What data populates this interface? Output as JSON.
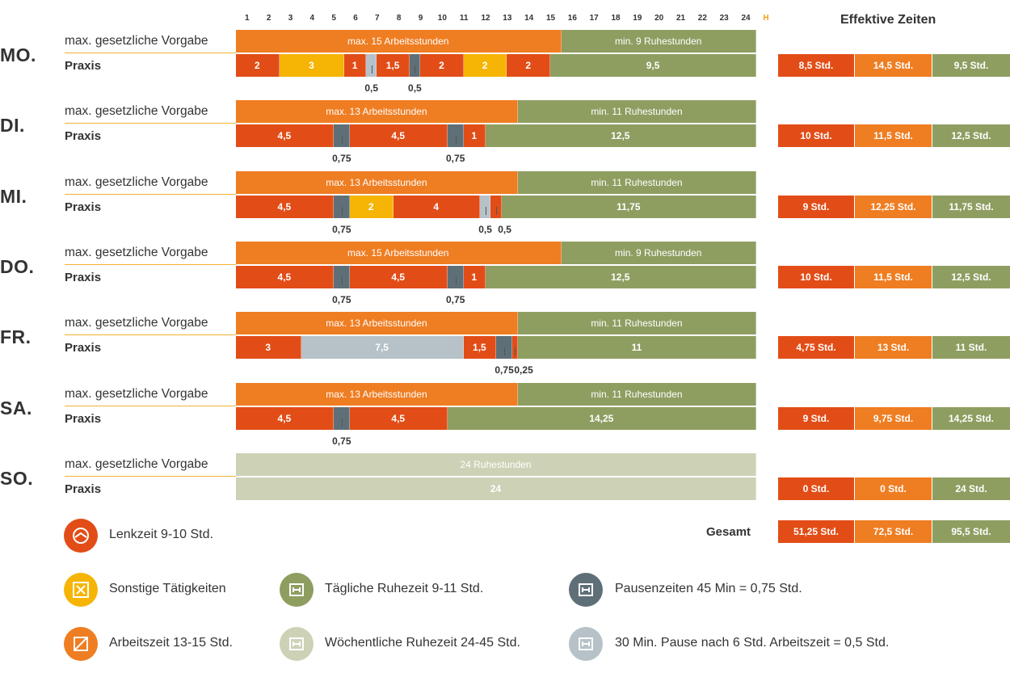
{
  "colors": {
    "lenkzeit": "#e24d17",
    "sonstige": "#f6b405",
    "arbeitszeit": "#ef7d22",
    "ruhezeit_taeglich": "#8e9e61",
    "ruhezeit_woechentlich": "#cdd2b6",
    "pause_075": "#5f6f78",
    "pause_05": "#b6c1c8"
  },
  "hours": [
    "1",
    "2",
    "3",
    "4",
    "5",
    "6",
    "7",
    "8",
    "9",
    "10",
    "11",
    "12",
    "13",
    "14",
    "15",
    "16",
    "17",
    "18",
    "19",
    "20",
    "21",
    "22",
    "23",
    "24"
  ],
  "hours_unit": "H",
  "effective_title": "Effektive Zeiten",
  "total_label": "Gesamt",
  "vorgabe_label": "max. gesetzliche Vorgabe",
  "praxis_label": "Praxis",
  "chart_data": {
    "type": "bar",
    "orientation": "horizontal-stacked",
    "xlim": [
      0,
      24
    ],
    "x_unit": "H",
    "days": [
      {
        "day": "MO.",
        "vorgabe": [
          {
            "label": "max. 15 Arbeitsstunden",
            "value": 15,
            "category": "arbeitszeit"
          },
          {
            "label": "min. 9 Ruhestunden",
            "value": 9,
            "category": "ruhezeit_taeglich"
          }
        ],
        "praxis": [
          {
            "label": "2",
            "value": 2,
            "category": "lenkzeit"
          },
          {
            "label": "3",
            "value": 3,
            "category": "sonstige"
          },
          {
            "label": "1",
            "value": 1,
            "category": "lenkzeit"
          },
          {
            "label": "",
            "value": 0.5,
            "category": "pause_05",
            "below": "0,5"
          },
          {
            "label": "1,5",
            "value": 1.5,
            "category": "lenkzeit"
          },
          {
            "label": "",
            "value": 0.5,
            "category": "pause_075",
            "below": "0,5"
          },
          {
            "label": "2",
            "value": 2,
            "category": "lenkzeit"
          },
          {
            "label": "2",
            "value": 2,
            "category": "sonstige"
          },
          {
            "label": "2",
            "value": 2,
            "category": "lenkzeit"
          },
          {
            "label": "9,5",
            "value": 9.5,
            "category": "ruhezeit_taeglich"
          }
        ],
        "effective": [
          "8,5 Std.",
          "14,5 Std.",
          "9,5 Std."
        ]
      },
      {
        "day": "DI.",
        "vorgabe": [
          {
            "label": "max. 13 Arbeitsstunden",
            "value": 13,
            "category": "arbeitszeit"
          },
          {
            "label": "min. 11 Ruhestunden",
            "value": 11,
            "category": "ruhezeit_taeglich"
          }
        ],
        "praxis": [
          {
            "label": "4,5",
            "value": 4.5,
            "category": "lenkzeit"
          },
          {
            "label": "",
            "value": 0.75,
            "category": "pause_075",
            "below": "0,75"
          },
          {
            "label": "4,5",
            "value": 4.5,
            "category": "lenkzeit"
          },
          {
            "label": "",
            "value": 0.75,
            "category": "pause_075",
            "below": "0,75"
          },
          {
            "label": "1",
            "value": 1,
            "category": "lenkzeit"
          },
          {
            "label": "12,5",
            "value": 12.5,
            "category": "ruhezeit_taeglich"
          }
        ],
        "effective": [
          "10 Std.",
          "11,5 Std.",
          "12,5 Std."
        ]
      },
      {
        "day": "MI.",
        "vorgabe": [
          {
            "label": "max. 13 Arbeitsstunden",
            "value": 13,
            "category": "arbeitszeit"
          },
          {
            "label": "min. 11 Ruhestunden",
            "value": 11,
            "category": "ruhezeit_taeglich"
          }
        ],
        "praxis": [
          {
            "label": "4,5",
            "value": 4.5,
            "category": "lenkzeit"
          },
          {
            "label": "",
            "value": 0.75,
            "category": "pause_075",
            "below": "0,75"
          },
          {
            "label": "2",
            "value": 2,
            "category": "sonstige"
          },
          {
            "label": "4",
            "value": 4,
            "category": "lenkzeit"
          },
          {
            "label": "",
            "value": 0.5,
            "category": "pause_05",
            "below": "0,5"
          },
          {
            "label": "",
            "value": 0.5,
            "category": "lenkzeit",
            "below": "0,5"
          },
          {
            "label": "11,75",
            "value": 11.75,
            "category": "ruhezeit_taeglich"
          }
        ],
        "effective": [
          "9 Std.",
          "12,25 Std.",
          "11,75 Std."
        ]
      },
      {
        "day": "DO.",
        "vorgabe": [
          {
            "label": "max. 15 Arbeitsstunden",
            "value": 15,
            "category": "arbeitszeit"
          },
          {
            "label": "min. 9 Ruhestunden",
            "value": 9,
            "category": "ruhezeit_taeglich"
          }
        ],
        "praxis": [
          {
            "label": "4,5",
            "value": 4.5,
            "category": "lenkzeit"
          },
          {
            "label": "",
            "value": 0.75,
            "category": "pause_075",
            "below": "0,75"
          },
          {
            "label": "4,5",
            "value": 4.5,
            "category": "lenkzeit"
          },
          {
            "label": "",
            "value": 0.75,
            "category": "pause_075",
            "below": "0,75"
          },
          {
            "label": "1",
            "value": 1,
            "category": "lenkzeit"
          },
          {
            "label": "12,5",
            "value": 12.5,
            "category": "ruhezeit_taeglich"
          }
        ],
        "effective": [
          "10 Std.",
          "11,5 Std.",
          "12,5 Std."
        ]
      },
      {
        "day": "FR.",
        "vorgabe": [
          {
            "label": "max. 13 Arbeitsstunden",
            "value": 13,
            "category": "arbeitszeit"
          },
          {
            "label": "min. 11 Ruhestunden",
            "value": 11,
            "category": "ruhezeit_taeglich"
          }
        ],
        "praxis": [
          {
            "label": "3",
            "value": 3,
            "category": "lenkzeit"
          },
          {
            "label": "7,5",
            "value": 7.5,
            "category": "pause_05"
          },
          {
            "label": "1,5",
            "value": 1.5,
            "category": "lenkzeit"
          },
          {
            "label": "",
            "value": 0.75,
            "category": "pause_075",
            "below": "0,75"
          },
          {
            "label": "",
            "value": 0.25,
            "category": "lenkzeit",
            "below": "0,25"
          },
          {
            "label": "11",
            "value": 11,
            "category": "ruhezeit_taeglich"
          }
        ],
        "effective": [
          "4,75 Std.",
          "13 Std.",
          "11 Std."
        ]
      },
      {
        "day": "SA.",
        "vorgabe": [
          {
            "label": "max. 13 Arbeitsstunden",
            "value": 13,
            "category": "arbeitszeit"
          },
          {
            "label": "min. 11 Ruhestunden",
            "value": 11,
            "category": "ruhezeit_taeglich"
          }
        ],
        "praxis": [
          {
            "label": "4,5",
            "value": 4.5,
            "category": "lenkzeit"
          },
          {
            "label": "",
            "value": 0.75,
            "category": "pause_075",
            "below": "0,75"
          },
          {
            "label": "4,5",
            "value": 4.5,
            "category": "lenkzeit"
          },
          {
            "label": "14,25",
            "value": 14.25,
            "category": "ruhezeit_taeglich"
          }
        ],
        "effective": [
          "9 Std.",
          "9,75 Std.",
          "14,25 Std."
        ]
      },
      {
        "day": "SO.",
        "vorgabe": [
          {
            "label": "24 Ruhestunden",
            "value": 24,
            "category": "ruhezeit_woechentlich"
          }
        ],
        "praxis": [
          {
            "label": "24",
            "value": 24,
            "category": "ruhezeit_woechentlich"
          }
        ],
        "effective": [
          "0 Std.",
          "0 Std.",
          "24 Std."
        ]
      }
    ],
    "total_effective": [
      "51,25 Std.",
      "72,5 Std.",
      "95,5 Std."
    ],
    "legend": [
      {
        "label": "Lenkzeit 9-10 Std.",
        "category": "lenkzeit",
        "icon": "steering-wheel-icon"
      },
      {
        "label": "Sonstige Tätigkeiten",
        "category": "sonstige",
        "icon": "tools-icon"
      },
      {
        "label": "Arbeitszeit 13-15 Std.",
        "category": "arbeitszeit",
        "icon": "work-icon"
      },
      {
        "label": "Tägliche Ruhezeit 9-11 Std.",
        "category": "ruhezeit_taeglich",
        "icon": "bed-icon"
      },
      {
        "label": "Wöchentliche Ruhezeit 24-45 Std.",
        "category": "ruhezeit_woechentlich",
        "icon": "bed-icon"
      },
      {
        "label": "Pausenzeiten 45 Min = 0,75 Std.",
        "category": "pause_075",
        "icon": "bed-icon"
      },
      {
        "label": "30 Min. Pause nach 6 Std. Arbeitszeit = 0,5 Std.",
        "category": "pause_05",
        "icon": "bed-icon"
      }
    ]
  }
}
